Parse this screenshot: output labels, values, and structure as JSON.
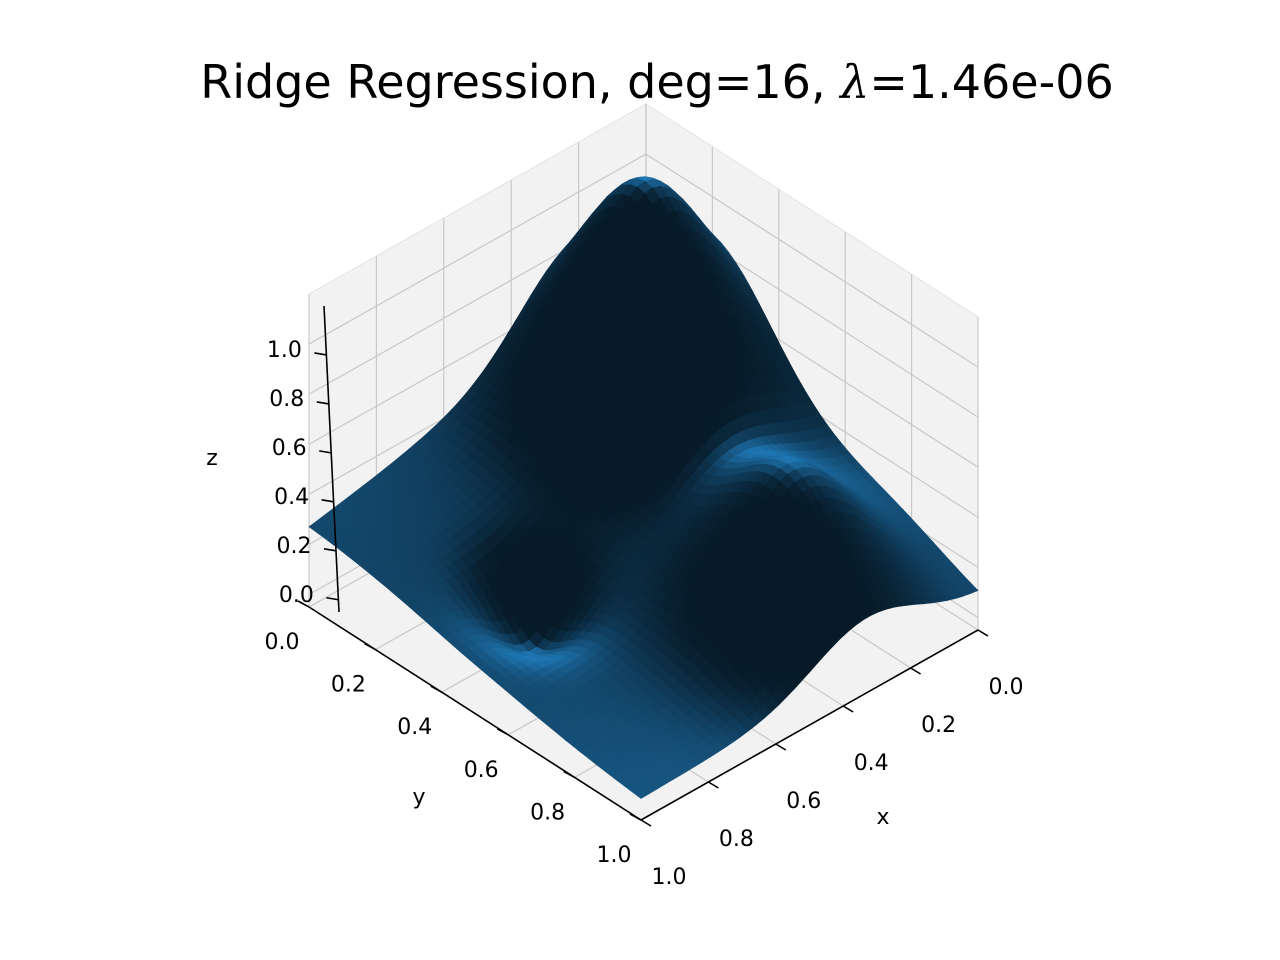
{
  "chart_data": {
    "type": "surface3d",
    "title_prefix": "Ridge Regression, deg=16, ",
    "title_symbol": "λ",
    "title_suffix": "=1.46e-06",
    "xlabel": "x",
    "ylabel": "y",
    "zlabel": "z",
    "x_ticks": [
      "0.0",
      "0.2",
      "0.4",
      "0.6",
      "0.8",
      "1.0"
    ],
    "y_ticks": [
      "0.0",
      "0.2",
      "0.4",
      "0.6",
      "0.8",
      "1.0"
    ],
    "z_ticks": [
      "0.0",
      "0.2",
      "0.4",
      "0.6",
      "0.8",
      "1.0"
    ],
    "x_range": [
      0,
      1
    ],
    "y_range": [
      0,
      1
    ],
    "z_range": [
      -0.05,
      1.2
    ],
    "grid": true,
    "surface_color": "#1f77b4",
    "pane_color": "#f2f2f2",
    "grid_color": "#c8c8c8"
  }
}
